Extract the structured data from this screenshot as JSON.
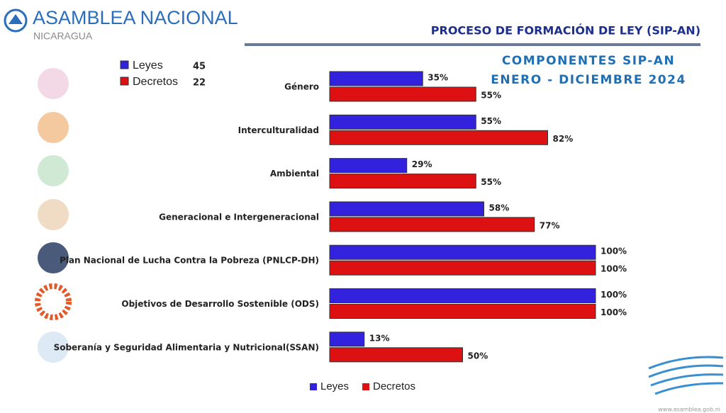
{
  "header": {
    "org": "ASAMBLEA NACIONAL",
    "country": "NICARAGUA",
    "title": "PROCESO DE FORMACIÓN DE LEY (SIP-AN)"
  },
  "chart_data": {
    "type": "bar",
    "orientation": "horizontal",
    "title": "COMPONENTES SIP-AN",
    "subtitle": "ENERO - DICIEMBRE 2024",
    "categories": [
      "Género",
      "Interculturalidad",
      "Ambiental",
      "Generacional e Intergeneracional",
      "Plan Nacional  de Lucha Contra la Pobreza (PNLCP-DH)",
      "Objetivos de Desarrollo Sostenible (ODS)",
      "Soberanía y Seguridad Alimentaria y Nutricional(SSAN)"
    ],
    "series": [
      {
        "name": "Leyes",
        "color": "#3322dd",
        "total": 45,
        "values": [
          35,
          55,
          29,
          58,
          100,
          100,
          13
        ],
        "value_labels": [
          "35%",
          "55%",
          "29%",
          "58%",
          "100%",
          "100%",
          "13%"
        ]
      },
      {
        "name": "Decretos",
        "color": "#dd1111",
        "total": 22,
        "values": [
          55,
          82,
          55,
          77,
          100,
          100,
          50
        ],
        "value_labels": [
          "55%",
          "82%",
          "55%",
          "77%",
          "100%",
          "100%",
          "50%"
        ]
      }
    ],
    "xlim": [
      0,
      100
    ],
    "grid": false
  },
  "footer": "www.asamblea.gob.ni"
}
